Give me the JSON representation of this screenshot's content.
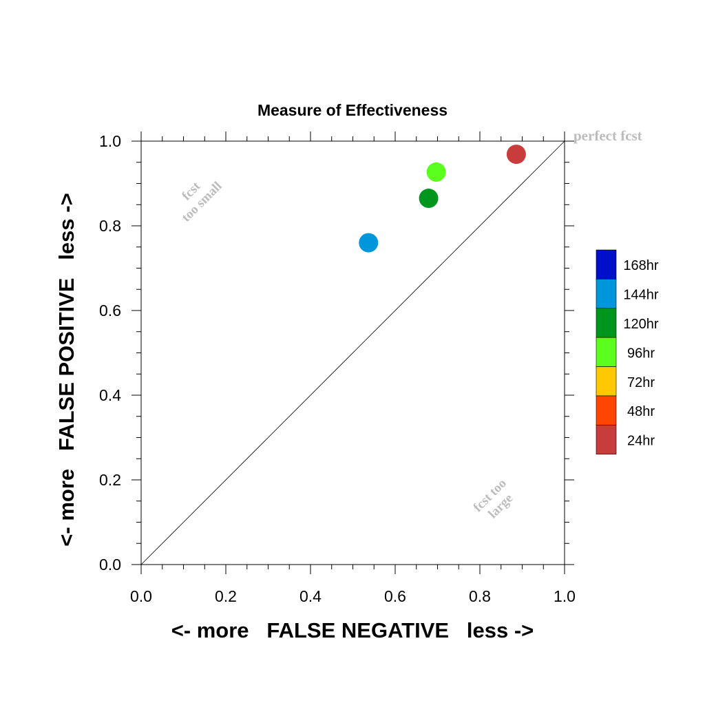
{
  "chart_data": {
    "type": "scatter",
    "title": "Measure of Effectiveness",
    "xlabel": "<- more   FALSE NEGATIVE   less ->",
    "ylabel": "<- more   FALSE POSITIVE   less ->",
    "xlim": [
      0,
      1
    ],
    "ylim": [
      0,
      1
    ],
    "x_ticks": [
      "0.0",
      "0.2",
      "0.4",
      "0.6",
      "0.8",
      "1.0"
    ],
    "y_ticks": [
      "0.0",
      "0.2",
      "0.4",
      "0.6",
      "0.8",
      "1.0"
    ],
    "grid": false,
    "reference_line": {
      "from": [
        0,
        0
      ],
      "to": [
        1,
        1
      ]
    },
    "annotations": {
      "perfect": "perfect fcst",
      "small_line1": "fcst",
      "small_line2": "too small",
      "large_line1": "fcst too",
      "large_line2": "large"
    },
    "legend": {
      "placement": "right",
      "entries": [
        {
          "label": "168hr",
          "color": "#0010c8"
        },
        {
          "label": "144hr",
          "color": "#0096dc"
        },
        {
          "label": "120hr",
          "color": "#00961e"
        },
        {
          "label": "96hr",
          "color": "#5aff1e"
        },
        {
          "label": "72hr",
          "color": "#ffc800"
        },
        {
          "label": "48hr",
          "color": "#ff4600"
        },
        {
          "label": "24hr",
          "color": "#c83c3c"
        }
      ]
    },
    "series": [
      {
        "lead": "144hr",
        "x": 0.537,
        "y": 0.76,
        "color": "#0096dc"
      },
      {
        "lead": "120hr",
        "x": 0.679,
        "y": 0.865,
        "color": "#00961e"
      },
      {
        "lead": "96hr",
        "x": 0.697,
        "y": 0.927,
        "color": "#5aff1e"
      },
      {
        "lead": "24hr",
        "x": 0.886,
        "y": 0.969,
        "color": "#c83c3c"
      }
    ]
  }
}
